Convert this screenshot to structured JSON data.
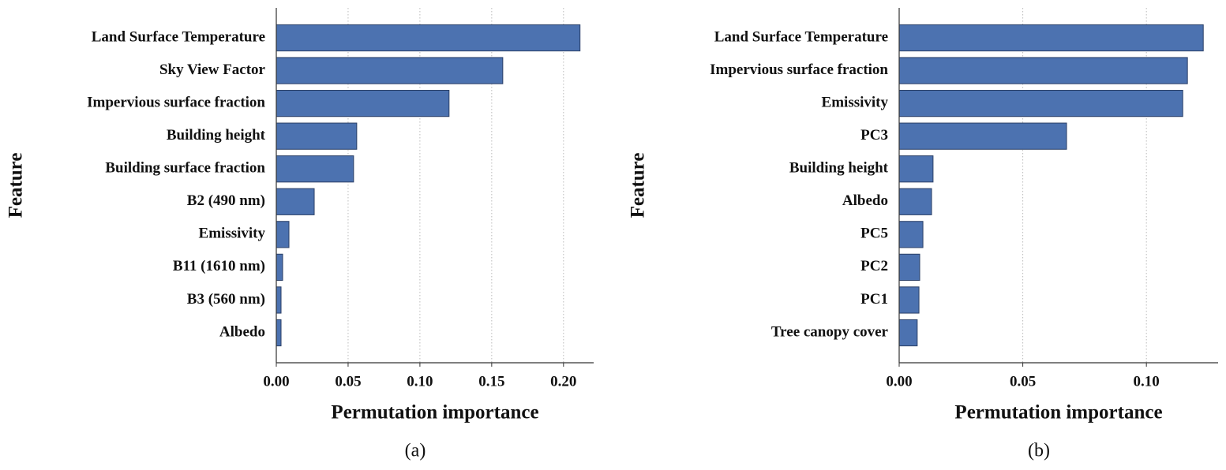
{
  "chart_data": [
    {
      "type": "barh",
      "caption": "(a)",
      "xlabel": "Permutation importance",
      "ylabel": "Feature",
      "categories": [
        "Land Surface Temperature",
        "Sky View Factor",
        "Impervious surface fraction",
        "Building height",
        "Building surface fraction",
        "B2 (490 nm)",
        "Emissivity",
        "B11 (1610 nm)",
        "B3 (560 nm)",
        "Albedo"
      ],
      "values": [
        0.2115,
        0.1577,
        0.1203,
        0.056,
        0.0538,
        0.0264,
        0.0088,
        0.0044,
        0.0033,
        0.0033
      ],
      "color": "#4c72b0",
      "xlim": [
        0,
        0.221
      ],
      "xticks": [
        {
          "value": 0,
          "label": "0.00"
        },
        {
          "value": 0.05,
          "label": "0.05"
        },
        {
          "value": 0.1,
          "label": "0.10"
        },
        {
          "value": 0.15,
          "label": "0.15"
        },
        {
          "value": 0.2,
          "label": "0.20"
        }
      ],
      "grid": true
    },
    {
      "type": "barh",
      "caption": "(b)",
      "xlabel": "Permutation importance",
      "ylabel": "Feature",
      "categories": [
        "Land Surface Temperature",
        "Impervious surface fraction",
        "Emissivity",
        "PC3",
        "Building height",
        "Albedo",
        "PC5",
        "PC2",
        "PC1",
        "Tree canopy cover"
      ],
      "values": [
        0.123,
        0.1166,
        0.1147,
        0.0677,
        0.0137,
        0.0131,
        0.0096,
        0.0083,
        0.008,
        0.0073
      ],
      "color": "#4c72b0",
      "xlim": [
        0,
        0.129
      ],
      "xticks": [
        {
          "value": 0,
          "label": "0.00"
        },
        {
          "value": 0.05,
          "label": "0.05"
        },
        {
          "value": 0.1,
          "label": "0.10"
        }
      ],
      "grid": true
    }
  ]
}
